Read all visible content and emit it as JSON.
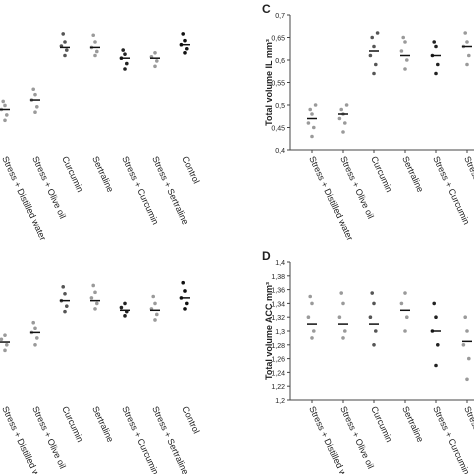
{
  "chart_data": [
    {
      "type": "dot",
      "categories": [
        "Stress + Distilled water",
        "Stress + Olive oil",
        "Curcumin",
        "Sertraline",
        "Stress + Curcumin",
        "Stress + Sertraline",
        "Control"
      ],
      "colors": [
        "#9a9a9a",
        "#9a9a9a",
        "#555555",
        "#9a9a9a",
        "#222222",
        "#9a9a9a",
        "#111111"
      ],
      "ylim": [
        0,
        1
      ],
      "medians": [
        0.3,
        0.37,
        0.76,
        0.76,
        0.68,
        0.68,
        0.78
      ],
      "points": [
        [
          0.22,
          0.26,
          0.3,
          0.33,
          0.36
        ],
        [
          0.28,
          0.32,
          0.37,
          0.41,
          0.45
        ],
        [
          0.7,
          0.74,
          0.77,
          0.8,
          0.86
        ],
        [
          0.7,
          0.73,
          0.76,
          0.8,
          0.85
        ],
        [
          0.6,
          0.64,
          0.68,
          0.71,
          0.74
        ],
        [
          0.62,
          0.66,
          0.69,
          0.72
        ],
        [
          0.72,
          0.75,
          0.78,
          0.81,
          0.86
        ]
      ]
    },
    {
      "type": "dot",
      "label": "C",
      "ylabel": "Total volume IL mm³",
      "categories": [
        "Stress + Distilled water",
        "Stress + Olive oil",
        "Curcumin",
        "Sertraline",
        "Stress + Curcumin",
        "Stress + Sertraline"
      ],
      "colors": [
        "#9a9a9a",
        "#9a9a9a",
        "#555555",
        "#9a9a9a",
        "#222222",
        "#9a9a9a"
      ],
      "ylim": [
        0.4,
        0.7
      ],
      "yticks": [
        {
          "value": 0.4,
          "label": "0,4"
        },
        {
          "value": 0.45,
          "label": "0,45"
        },
        {
          "value": 0.5,
          "label": "0,5"
        },
        {
          "value": 0.55,
          "label": "0,55"
        },
        {
          "value": 0.6,
          "label": "0,6"
        },
        {
          "value": 0.65,
          "label": "0,65"
        },
        {
          "value": 0.7,
          "label": "0,7"
        }
      ],
      "medians": [
        0.47,
        0.48,
        0.62,
        0.61,
        0.61,
        0.63
      ],
      "points": [
        [
          0.43,
          0.45,
          0.46,
          0.48,
          0.49,
          0.5
        ],
        [
          0.44,
          0.46,
          0.47,
          0.48,
          0.49,
          0.5
        ],
        [
          0.57,
          0.59,
          0.61,
          0.63,
          0.65,
          0.66
        ],
        [
          0.58,
          0.6,
          0.62,
          0.64,
          0.65
        ],
        [
          0.57,
          0.59,
          0.61,
          0.63,
          0.64
        ],
        [
          0.59,
          0.61,
          0.63,
          0.64,
          0.66
        ]
      ]
    },
    {
      "type": "dot",
      "categories": [
        "Stress + Distilled water",
        "Stress + Olive oil",
        "Curcumin",
        "Sertraline",
        "Stress + Curcumin",
        "Stress + Sertraline",
        "Control"
      ],
      "colors": [
        "#9a9a9a",
        "#9a9a9a",
        "#555555",
        "#9a9a9a",
        "#222222",
        "#9a9a9a",
        "#111111"
      ],
      "ylim": [
        0,
        1
      ],
      "medians": [
        0.42,
        0.49,
        0.72,
        0.72,
        0.65,
        0.65,
        0.74
      ],
      "points": [
        [
          0.36,
          0.4,
          0.44,
          0.47
        ],
        [
          0.4,
          0.45,
          0.49,
          0.52,
          0.56
        ],
        [
          0.64,
          0.68,
          0.72,
          0.77,
          0.82
        ],
        [
          0.66,
          0.7,
          0.74,
          0.78,
          0.83
        ],
        [
          0.61,
          0.64,
          0.67,
          0.7
        ],
        [
          0.58,
          0.62,
          0.66,
          0.7,
          0.75
        ],
        [
          0.66,
          0.7,
          0.74,
          0.79,
          0.85
        ]
      ]
    },
    {
      "type": "dot",
      "label": "D",
      "ylabel": "Total volume ACC mm³",
      "categories": [
        "Stress + Distilled water",
        "Stress + Olive oil",
        "Curcumin",
        "Sertraline",
        "Stress + Curcumin",
        "Stress + Sertraline"
      ],
      "colors": [
        "#9a9a9a",
        "#9a9a9a",
        "#555555",
        "#9a9a9a",
        "#222222",
        "#9a9a9a"
      ],
      "ylim": [
        1.2,
        1.4
      ],
      "yticks": [
        {
          "value": 1.2,
          "label": "1,2"
        },
        {
          "value": 1.22,
          "label": "1,22"
        },
        {
          "value": 1.24,
          "label": "1,24"
        },
        {
          "value": 1.26,
          "label": "1,26"
        },
        {
          "value": 1.28,
          "label": "1,28"
        },
        {
          "value": 1.3,
          "label": "1,3"
        },
        {
          "value": 1.32,
          "label": "1,32"
        },
        {
          "value": 1.34,
          "label": "1,34"
        },
        {
          "value": 1.36,
          "label": "1,36"
        },
        {
          "value": 1.38,
          "label": "1,38"
        },
        {
          "value": 1.4,
          "label": "1,4"
        }
      ],
      "medians": [
        1.31,
        1.31,
        1.31,
        1.33,
        1.3,
        1.285
      ],
      "points": [
        [
          1.29,
          1.3,
          1.32,
          1.34,
          1.35
        ],
        [
          1.29,
          1.3,
          1.32,
          1.34,
          1.355
        ],
        [
          1.28,
          1.3,
          1.32,
          1.34,
          1.355
        ],
        [
          1.3,
          1.32,
          1.34,
          1.355
        ],
        [
          1.25,
          1.28,
          1.3,
          1.32,
          1.34
        ],
        [
          1.23,
          1.26,
          1.28,
          1.3,
          1.32
        ]
      ]
    }
  ]
}
